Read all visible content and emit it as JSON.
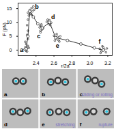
{
  "chart_data": {
    "type": "scatter",
    "x_label": "r/2a",
    "y_label": "F (pN)",
    "xlim": [
      2.2,
      3.25
    ],
    "xticks": [
      2.4,
      2.6,
      2.8,
      {
        "value": 3,
        "label": "3.0"
      },
      3.2
    ],
    "ylim": [
      -2,
      17
    ],
    "yticks": [
      0,
      5,
      10,
      15
    ],
    "grid": false,
    "series": [
      {
        "type": "scatter",
        "color": "#000000",
        "marker": "circle",
        "x": [
          2.27,
          2.28,
          2.29,
          2.3,
          2.31,
          2.29,
          2.3,
          2.32,
          2.28,
          2.31,
          2.3,
          2.31,
          2.3,
          2.31,
          2.32,
          2.31,
          2.33,
          2.35,
          2.36,
          2.34,
          2.37,
          2.35,
          2.38,
          2.44,
          2.45,
          2.46,
          2.47,
          2.45,
          2.48,
          2.46,
          2.52,
          2.54,
          2.55,
          2.57,
          2.53,
          2.56,
          2.6,
          2.62,
          2.63,
          2.65,
          2.64,
          2.66,
          2.67,
          2.61,
          3.11,
          3.13,
          3.15,
          3.16,
          3.18,
          3.14,
          3.19,
          3.12
        ],
        "values": [
          0.2,
          1.0,
          -0.3,
          0.6,
          1.5,
          2.2,
          -0.5,
          0.8,
          3.0,
          4.0,
          5.5,
          7.0,
          9.0,
          11.0,
          12.5,
          13.5,
          14.5,
          15.2,
          14.0,
          13.2,
          15.8,
          12.8,
          14.6,
          8.2,
          7.0,
          8.8,
          7.5,
          6.4,
          8.0,
          9.3,
          10.2,
          9.4,
          10.8,
          9.9,
          11.0,
          9.0,
          5.2,
          4.1,
          5.8,
          3.6,
          4.8,
          3.1,
          5.0,
          3.4,
          0.5,
          -0.4,
          1.0,
          0.2,
          -0.8,
          1.4,
          0.6,
          -1.0
        ]
      },
      {
        "type": "line",
        "color": "#000000",
        "marker": "open_circle",
        "x": [
          2.29,
          2.31,
          2.33,
          2.37,
          2.42,
          2.47,
          2.55,
          2.62,
          2.75,
          2.9,
          3.05,
          3.15
        ],
        "values": [
          0.5,
          5,
          14,
          12,
          9.5,
          8,
          10,
          4.5,
          3.5,
          2.2,
          0.8,
          0
        ]
      }
    ],
    "annotations": [
      {
        "text": "a",
        "x": 2.24,
        "y": 0
      },
      {
        "text": "b",
        "x": 2.41,
        "y": 15.5
      },
      {
        "text": "c",
        "x": 2.43,
        "y": 5
      },
      {
        "text": "d",
        "x": 2.59,
        "y": 12
      },
      {
        "text": "e",
        "x": 2.64,
        "y": 1.6
      },
      {
        "text": "f",
        "x": 3.11,
        "y": 3
      }
    ]
  },
  "panels": [
    {
      "label": "a"
    },
    {
      "label": "b"
    },
    {
      "label": "c",
      "caption": "sliding or rolling"
    },
    {
      "label": "d"
    },
    {
      "label": "e",
      "caption": "stretching"
    },
    {
      "label": "f",
      "caption": "rupture"
    }
  ]
}
